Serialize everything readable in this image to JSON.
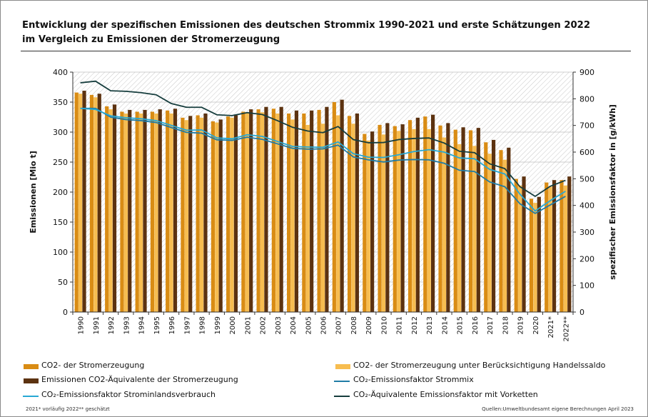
{
  "title_line1": "Entwicklung der spezifischen Emissionen des deutschen Strommix 1990-2021 und erste Schätzungen 2022",
  "title_line2": "im Vergleich zu Emissionen der Stromerzeugung",
  "colors": {
    "co2": "#d98c14",
    "co2_handel": "#f7bd50",
    "co2_aeq": "#5c3210",
    "ef_strommix": "#207ca6",
    "ef_inland": "#27a8d4",
    "ef_vorketten": "#163d3d"
  },
  "chart_data": {
    "type": "bar",
    "title": "Entwicklung der spezifischen Emissionen des deutschen Strommix 1990-2021 und erste Schätzungen 2022",
    "categories": [
      "1990",
      "1991",
      "1992",
      "1993",
      "1994",
      "1995",
      "1996",
      "1997",
      "1998",
      "1999",
      "2000",
      "2001",
      "2002",
      "2003",
      "2004",
      "2005",
      "2006",
      "2007",
      "2008",
      "2009",
      "2010",
      "2011",
      "2012",
      "2013",
      "2014",
      "2015",
      "2016",
      "2017",
      "2018",
      "2019",
      "2020",
      "2021*",
      "2022**"
    ],
    "ylabel": "Emissionen  [Mio t]",
    "ylim": [
      0,
      400
    ],
    "yticks": [
      0,
      50,
      100,
      150,
      200,
      250,
      300,
      350,
      400
    ],
    "y2label": "spezifischer Emissionsfaktor  in [g/kWh]",
    "y2lim": [
      0,
      900
    ],
    "y2ticks": [
      0,
      100,
      200,
      300,
      400,
      500,
      600,
      700,
      800,
      900
    ],
    "series": [
      {
        "name": "CO2- der Stromerzeugung",
        "kind": "bar",
        "axis": "left",
        "values": [
          366,
          362,
          343,
          334,
          334,
          334,
          336,
          324,
          328,
          318,
          326,
          334,
          338,
          339,
          331,
          331,
          337,
          350,
          327,
          297,
          312,
          310,
          320,
          326,
          311,
          304,
          303,
          283,
          270,
          222,
          189,
          216,
          220
        ]
      },
      {
        "name": "CO2- der Stromerzeugung unter Berücksichtigung Handelssaldo",
        "kind": "bar",
        "axis": "left",
        "values": [
          364,
          358,
          338,
          331,
          331,
          331,
          331,
          320,
          324,
          316,
          324,
          332,
          333,
          331,
          321,
          312,
          314,
          328,
          314,
          286,
          296,
          302,
          305,
          305,
          291,
          280,
          277,
          264,
          254,
          211,
          182,
          209,
          211
        ]
      },
      {
        "name": "Emissionen CO2-Äquivalente der Stromerzeugung",
        "kind": "bar",
        "axis": "left",
        "values": [
          369,
          364,
          346,
          337,
          337,
          338,
          339,
          327,
          331,
          321,
          328,
          338,
          342,
          342,
          336,
          336,
          342,
          354,
          331,
          301,
          315,
          313,
          324,
          329,
          315,
          308,
          307,
          287,
          274,
          226,
          192,
          220,
          226
        ]
      },
      {
        "name": "CO₂-Emissionsfaktor Strommix",
        "kind": "line",
        "axis": "right",
        "values": [
          764,
          764,
          731,
          722,
          718,
          711,
          692,
          674,
          671,
          646,
          644,
          656,
          648,
          631,
          614,
          611,
          612,
          626,
          582,
          571,
          563,
          570,
          572,
          571,
          558,
          532,
          527,
          488,
          470,
          406,
          370,
          402,
          434
        ]
      },
      {
        "name": "CO₂-Emissionsfaktor Strominlandsverbrauch",
        "kind": "line",
        "axis": "right",
        "values": [
          764,
          760,
          736,
          729,
          725,
          718,
          700,
          682,
          683,
          653,
          650,
          665,
          659,
          640,
          621,
          619,
          618,
          638,
          594,
          581,
          580,
          590,
          602,
          609,
          600,
          578,
          575,
          535,
          518,
          442,
          379,
          418,
          453
        ]
      },
      {
        "name": "CO₂-Äquivalente Emissionsfaktor mit Vorketten",
        "kind": "line",
        "axis": "right",
        "values": [
          860,
          866,
          830,
          828,
          823,
          815,
          782,
          768,
          768,
          740,
          737,
          748,
          741,
          718,
          693,
          679,
          673,
          696,
          647,
          635,
          636,
          647,
          651,
          653,
          634,
          603,
          598,
          556,
          538,
          470,
          434,
          472,
          494
        ]
      }
    ]
  },
  "footnote": "2021* vorläufig    2022** geschätzt",
  "source": "Quellen:Umweltbundesamt  eigene Berechnungen April 2023"
}
